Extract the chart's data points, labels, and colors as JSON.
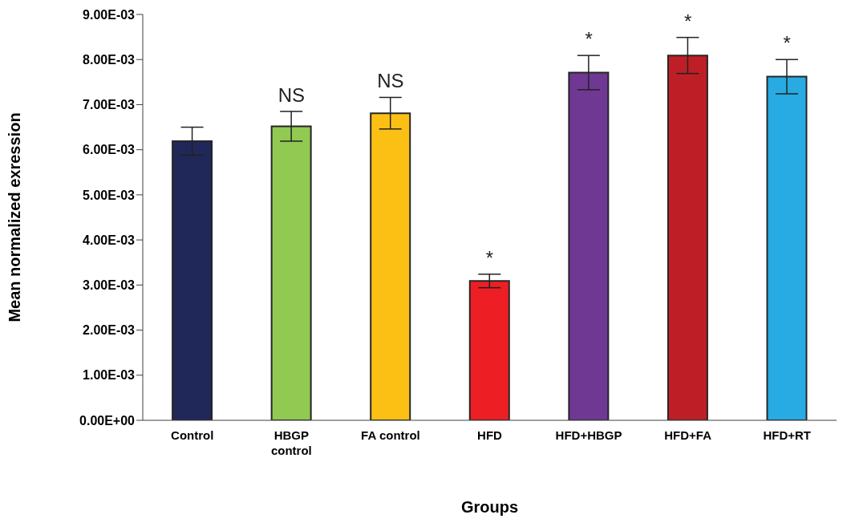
{
  "chart_data": {
    "type": "bar",
    "xlabel": "Groups",
    "ylabel": "Mean normalized exression",
    "categories": [
      "Control",
      "HBGP control",
      "FA control",
      "HFD",
      "HFD+HBGP",
      "HFD+FA",
      "HFD+RT"
    ],
    "values": [
      0.00619,
      0.00652,
      0.00681,
      0.00309,
      0.00771,
      0.00809,
      0.00762
    ],
    "errors": [
      0.00031,
      0.00033,
      0.00035,
      0.00015,
      0.00038,
      0.0004,
      0.00038
    ],
    "colors": [
      "#1f2858",
      "#92c952",
      "#fcc015",
      "#ed1f24",
      "#6f3893",
      "#be1f26",
      "#27abe2"
    ],
    "ylim": [
      0,
      0.009
    ],
    "yticks": [
      {
        "value": 0,
        "label": "0.00E+00"
      },
      {
        "value": 0.001,
        "label": "1.00E-03"
      },
      {
        "value": 0.002,
        "label": "2.00E-03"
      },
      {
        "value": 0.003,
        "label": "3.00E-03"
      },
      {
        "value": 0.004,
        "label": "4.00E-03"
      },
      {
        "value": 0.005,
        "label": "5.00E-03"
      },
      {
        "value": 0.006,
        "label": "6.00E-03"
      },
      {
        "value": 0.007,
        "label": "7.00E-03"
      },
      {
        "value": 0.008,
        "label": "8.00E-03"
      },
      {
        "value": 0.009,
        "label": "9.00E-03"
      }
    ],
    "annotations": [
      {
        "text": "NS",
        "x": "HBGP control",
        "y": 0.00685
      },
      {
        "text": "NS",
        "x": "FA control",
        "y": 0.00716
      },
      {
        "text": "*",
        "x": "HFD",
        "y": 0.00324
      },
      {
        "text": "*",
        "x": "HFD+HBGP",
        "y": 0.00809
      },
      {
        "text": "*",
        "x": "HFD+FA",
        "y": 0.00849
      },
      {
        "text": "*",
        "x": "HFD+RT",
        "y": 0.008
      }
    ],
    "grid": false,
    "legend": false
  }
}
